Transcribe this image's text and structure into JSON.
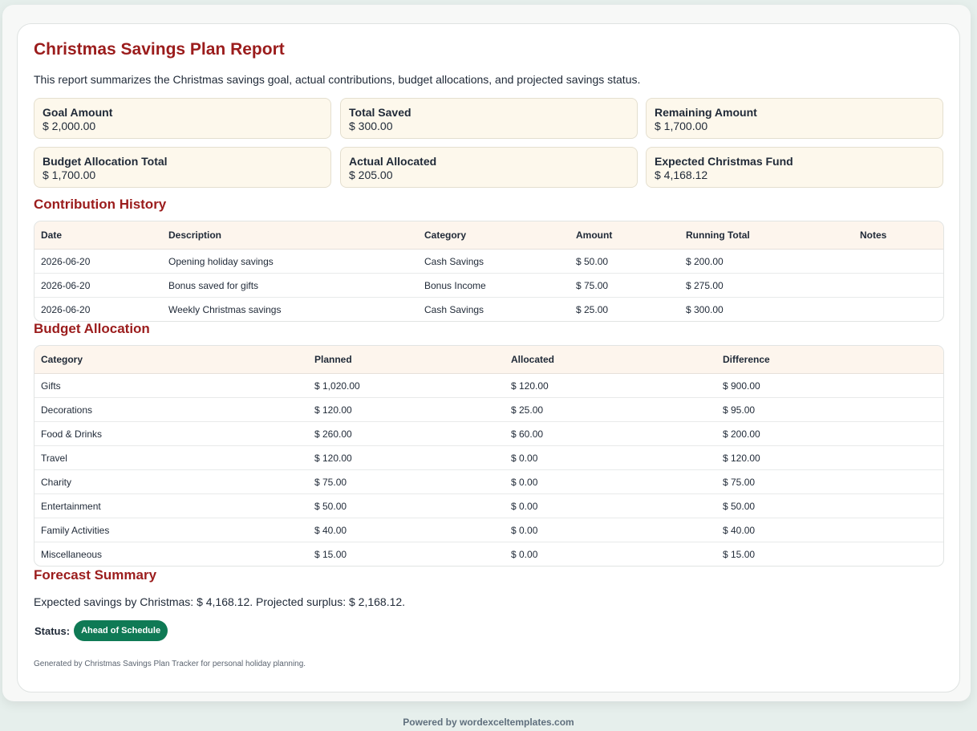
{
  "report": {
    "title": "Christmas Savings Plan Report",
    "intro": "This report summarizes the Christmas savings goal, actual contributions, budget allocations, and projected savings status."
  },
  "kpis": [
    {
      "label": "Goal Amount",
      "value": "$ 2,000.00"
    },
    {
      "label": "Total Saved",
      "value": "$ 300.00"
    },
    {
      "label": "Remaining Amount",
      "value": "$ 1,700.00"
    },
    {
      "label": "Budget Allocation Total",
      "value": "$ 1,700.00"
    },
    {
      "label": "Actual Allocated",
      "value": "$ 205.00"
    },
    {
      "label": "Expected Christmas Fund",
      "value": "$ 4,168.12"
    }
  ],
  "contributions": {
    "heading": "Contribution History",
    "columns": [
      "Date",
      "Description",
      "Category",
      "Amount",
      "Running Total",
      "Notes"
    ],
    "rows": [
      [
        "2026-06-20",
        "Opening holiday savings",
        "Cash Savings",
        "$ 50.00",
        "$ 200.00",
        ""
      ],
      [
        "2026-06-20",
        "Bonus saved for gifts",
        "Bonus Income",
        "$ 75.00",
        "$ 275.00",
        ""
      ],
      [
        "2026-06-20",
        "Weekly Christmas savings",
        "Cash Savings",
        "$ 25.00",
        "$ 300.00",
        ""
      ]
    ]
  },
  "budget": {
    "heading": "Budget Allocation",
    "columns": [
      "Category",
      "Planned",
      "Allocated",
      "Difference"
    ],
    "rows": [
      [
        "Gifts",
        "$ 1,020.00",
        "$ 120.00",
        "$ 900.00"
      ],
      [
        "Decorations",
        "$ 120.00",
        "$ 25.00",
        "$ 95.00"
      ],
      [
        "Food & Drinks",
        "$ 260.00",
        "$ 60.00",
        "$ 200.00"
      ],
      [
        "Travel",
        "$ 120.00",
        "$ 0.00",
        "$ 120.00"
      ],
      [
        "Charity",
        "$ 75.00",
        "$ 0.00",
        "$ 75.00"
      ],
      [
        "Entertainment",
        "$ 50.00",
        "$ 0.00",
        "$ 50.00"
      ],
      [
        "Family Activities",
        "$ 40.00",
        "$ 0.00",
        "$ 40.00"
      ],
      [
        "Miscellaneous",
        "$ 15.00",
        "$ 0.00",
        "$ 15.00"
      ]
    ]
  },
  "forecast": {
    "heading": "Forecast Summary",
    "text": "Expected savings by Christmas: $ 4,168.12. Projected surplus: $ 2,168.12.",
    "status_label": "Status:",
    "status_value": "Ahead of Schedule"
  },
  "footer": {
    "generated": "Generated by Christmas Savings Plan Tracker for personal holiday planning.",
    "powered_prefix": "Powered by",
    "powered_link": "wordexceltemplates.com"
  },
  "colors": {
    "heading": "#9b1c1c",
    "kpi_bg": "#fdf8ec",
    "badge": "#0f7a55",
    "background": "#e6efec"
  }
}
